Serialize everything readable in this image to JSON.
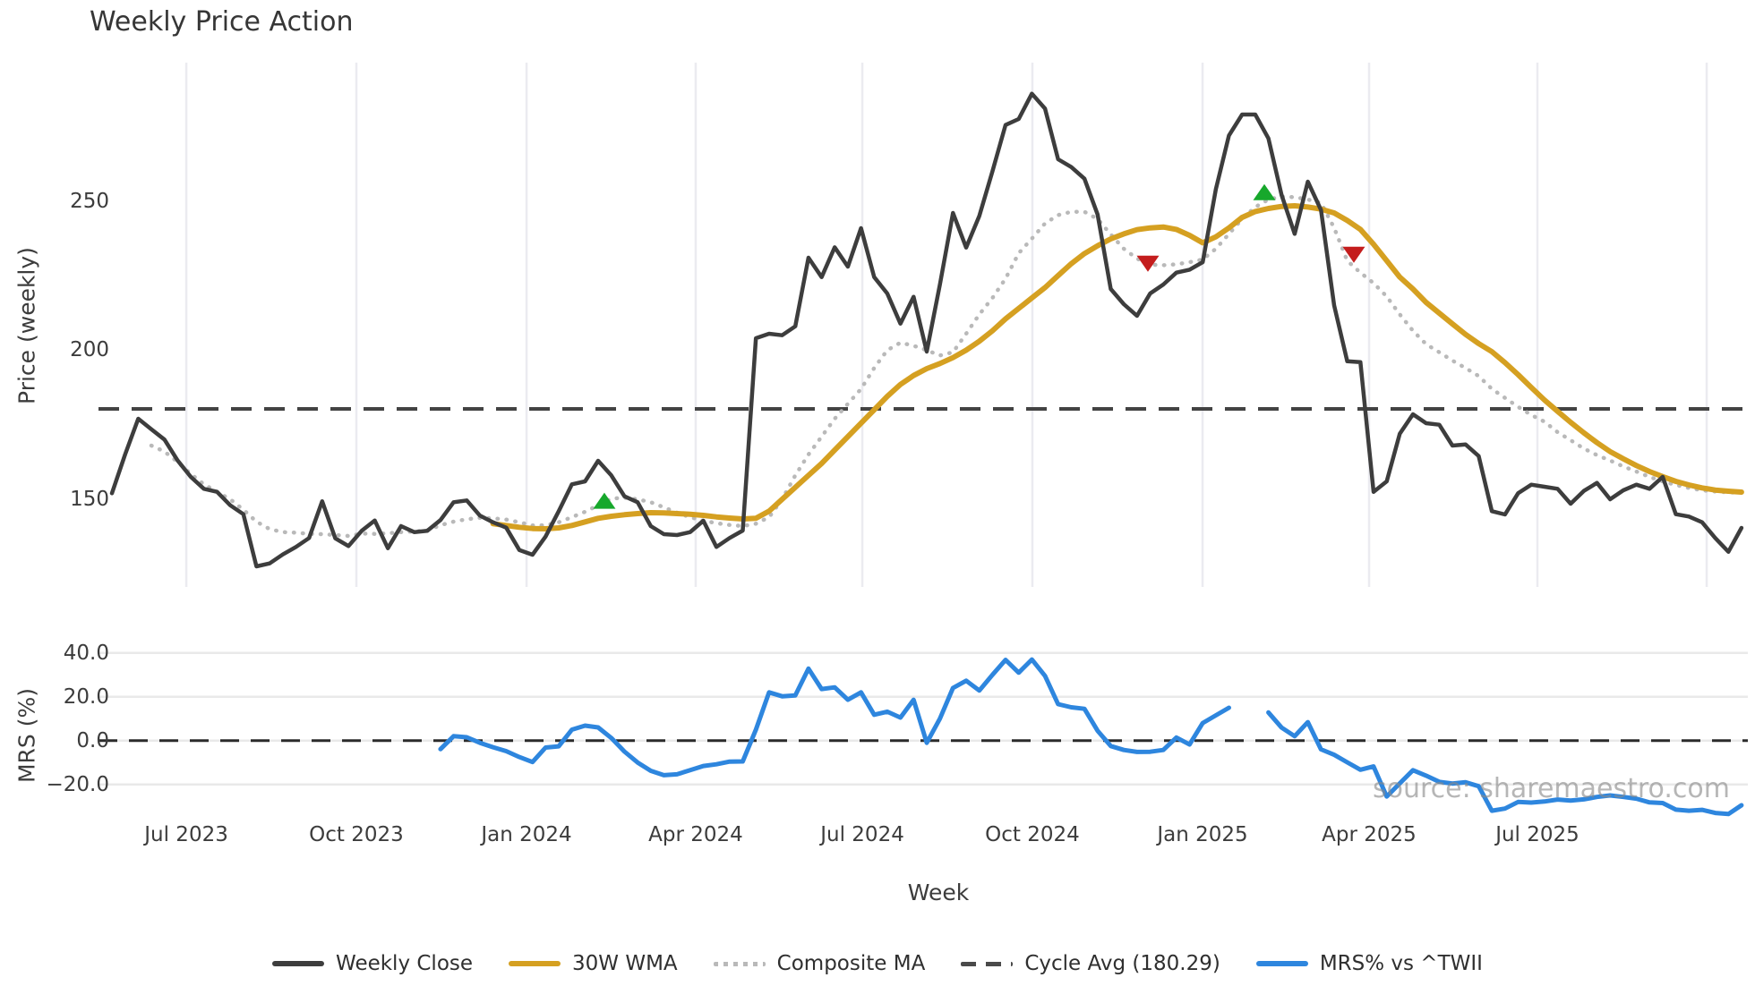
{
  "title": "Weekly Price Action",
  "watermark": "source: sharemaestro.com",
  "price_panel": {
    "ylabel": "Price (weekly)",
    "yticks": [
      {
        "label": "250",
        "value": 250
      },
      {
        "label": "200",
        "value": 200
      },
      {
        "label": "150",
        "value": 150
      }
    ],
    "ylim": [
      120,
      296.5
    ],
    "cycle_avg_value": 180.29
  },
  "mrs_panel": {
    "ylabel": "MRS (%)",
    "yticks": [
      {
        "label": "40.0",
        "value": 40
      },
      {
        "label": "20.0",
        "value": 20
      },
      {
        "label": "0.0",
        "value": 0
      },
      {
        "label": "−20.0",
        "value": -20
      }
    ],
    "ylim": [
      -38,
      44
    ],
    "zero_line": 0
  },
  "x_axis": {
    "label": "Week",
    "ticks": [
      {
        "label": "Jul 2023",
        "week": 5.66
      },
      {
        "label": "Oct 2023",
        "week": 18.6
      },
      {
        "label": "Jan 2024",
        "week": 31.55
      },
      {
        "label": "Apr 2024",
        "week": 44.42
      },
      {
        "label": "Jul 2024",
        "week": 57.1
      },
      {
        "label": "Oct 2024",
        "week": 70.04
      },
      {
        "label": "Jan 2025",
        "week": 82.99
      },
      {
        "label": "Apr 2025",
        "week": 95.66
      },
      {
        "label": "Jul 2025",
        "week": 108.47
      }
    ],
    "extra_gridline_weeks": [
      121.35
    ]
  },
  "legend": [
    {
      "label": "Weekly Close",
      "style": "solid",
      "color": "#3d3d3d"
    },
    {
      "label": "30W WMA",
      "style": "solid",
      "color": "#d5a021"
    },
    {
      "label": "Composite MA",
      "style": "dotted",
      "color": "#b9b9b9"
    },
    {
      "label": "Cycle Avg (180.29)",
      "style": "dashed",
      "color": "#4a4a4a"
    },
    {
      "label": "MRS% vs ^TWII",
      "style": "solid",
      "color": "#2e86de"
    }
  ],
  "colors": {
    "weekly_close": "#3d3d3d",
    "wma": "#d5a021",
    "composite": "#b9b9b9",
    "cycle_avg": "#434343",
    "mrs": "#2e86de",
    "buy_marker": "#17a82c",
    "sell_marker": "#c41d1d",
    "gridline": "#ebebf0",
    "mrs_gridline": "#e9e9e9"
  },
  "chart_data": {
    "type": "line",
    "title": "Weekly Price Action",
    "xlabel": "Week",
    "ylabel_top": "Price (weekly)",
    "ylabel_bottom": "MRS (%)",
    "x_start_date": "2023-05-29",
    "x_frequency": "weekly",
    "n_points": 125,
    "grid": "vertical-months-top-panel, horizontal-ticks-bottom-panel",
    "legend_position": "bottom-center",
    "cycle_avg": 180.29,
    "series": [
      {
        "name": "Weekly Close",
        "panel": "price",
        "values": [
          152,
          165,
          177,
          173.5,
          170,
          163,
          157.5,
          153.5,
          152.5,
          148,
          145,
          127.5,
          128.5,
          131.5,
          134,
          137,
          149.3,
          136.9,
          134.3,
          139.4,
          142.9,
          133.6,
          141,
          139,
          139.4,
          143,
          149,
          149.6,
          144.5,
          142.3,
          140.5,
          133,
          131.4,
          137.5,
          146,
          155,
          156,
          162.9,
          158,
          151,
          149,
          141,
          138.3,
          138,
          139,
          142.8,
          134,
          137,
          139.5,
          204,
          205.5,
          205,
          208,
          231,
          224.5,
          234.5,
          228,
          240.9,
          224.5,
          219,
          208.9,
          217.9,
          199.5,
          222,
          246,
          234.4,
          245,
          260,
          275.5,
          277.5,
          286,
          281,
          264,
          261.4,
          257.5,
          245.5,
          220.5,
          215.4,
          211.5,
          219,
          222,
          226,
          227,
          229.5,
          254,
          272,
          279,
          279,
          271,
          252,
          239,
          256.5,
          247,
          215,
          196.3,
          196,
          152.5,
          156,
          172,
          178.5,
          175.5,
          175,
          168,
          168.4,
          164.5,
          146,
          144.9,
          152,
          154.9,
          154.2,
          153.5,
          148.5,
          152.8,
          155.5,
          150,
          153,
          154.9,
          153.5,
          157.5,
          145,
          144.2,
          142.3,
          137,
          132.4,
          140.4
        ]
      },
      {
        "name": "30W WMA",
        "panel": "price",
        "values": [
          null,
          null,
          null,
          null,
          null,
          null,
          null,
          null,
          null,
          null,
          null,
          null,
          null,
          null,
          null,
          null,
          null,
          null,
          null,
          null,
          null,
          null,
          null,
          null,
          null,
          null,
          null,
          null,
          null,
          141.8,
          141.2,
          140.6,
          140.2,
          140.1,
          140.4,
          141.2,
          142.4,
          143.6,
          144.3,
          144.8,
          145.2,
          145.5,
          145.4,
          145.2,
          145,
          144.6,
          144.1,
          143.7,
          143.4,
          143.6,
          146,
          150,
          154,
          158,
          162,
          166.5,
          171,
          175.5,
          180,
          184.5,
          188.5,
          191.5,
          193.8,
          195.5,
          197.5,
          200,
          203,
          206.5,
          210.5,
          214,
          217.5,
          221,
          225,
          229,
          232.4,
          235,
          237.3,
          239,
          240.4,
          241,
          241.3,
          240.5,
          238.5,
          236,
          238,
          241,
          244.5,
          246.5,
          247.5,
          248.2,
          248.4,
          248,
          247.3,
          246,
          243.5,
          240.5,
          235.5,
          230,
          224.5,
          220.5,
          216,
          212.4,
          208.8,
          205.3,
          202.2,
          199.5,
          195.8,
          191.8,
          187.5,
          183.3,
          179.5,
          175.8,
          172.3,
          169,
          166,
          163.6,
          161.3,
          159.3,
          157.6,
          156,
          154.8,
          153.8,
          153.1,
          152.7,
          152.4
        ]
      },
      {
        "name": "Composite MA",
        "panel": "price",
        "values": [
          null,
          null,
          null,
          168,
          166,
          162.5,
          158.5,
          155,
          152.5,
          150,
          146.5,
          142.5,
          140,
          139,
          138.8,
          138.4,
          138.3,
          138,
          137.7,
          138.5,
          138.4,
          138.6,
          139,
          139.2,
          139.6,
          141.3,
          142.5,
          143.3,
          143.8,
          143.6,
          143.2,
          142.3,
          141.2,
          141.3,
          142.3,
          144,
          145.8,
          148,
          150.2,
          150.5,
          150,
          149,
          147.3,
          145.5,
          144,
          142.8,
          142,
          141.4,
          141,
          141.8,
          144,
          150,
          158,
          165,
          171,
          177,
          182,
          187,
          194,
          200,
          202.5,
          201.5,
          200,
          198.2,
          199.3,
          205.5,
          212,
          217.5,
          224,
          232.5,
          237.4,
          242.5,
          245.3,
          246.4,
          246.4,
          244,
          238.8,
          234,
          230.7,
          228.7,
          228.5,
          228.8,
          229.5,
          230.4,
          234,
          239,
          244,
          248,
          250.5,
          251.5,
          251.3,
          250.5,
          249.4,
          241,
          230,
          226,
          222.5,
          218,
          212,
          206.5,
          202,
          199.3,
          196.5,
          194,
          191.3,
          187,
          184,
          181,
          178.3,
          176,
          172.5,
          169.8,
          167,
          164.8,
          163,
          161,
          159.3,
          157.5,
          156,
          154.8,
          153.8,
          153,
          152.6,
          152.3,
          152.2
        ]
      },
      {
        "name": "MRS% vs ^TWII",
        "panel": "mrs",
        "values": [
          null,
          null,
          null,
          null,
          null,
          null,
          null,
          null,
          null,
          null,
          null,
          null,
          null,
          null,
          null,
          null,
          null,
          null,
          null,
          null,
          null,
          null,
          null,
          null,
          null,
          -3.9,
          2,
          1.5,
          -1,
          -3,
          -4.8,
          -7.5,
          -9.8,
          -3.2,
          -2.6,
          5,
          6.8,
          6,
          1.2,
          -5,
          -10,
          -13.8,
          -15.8,
          -15.4,
          -13.5,
          -11.6,
          -10.8,
          -9.6,
          -9.5,
          5,
          22,
          20.2,
          20.6,
          32.8,
          23.5,
          24.3,
          18.6,
          22,
          11.8,
          13.2,
          10.5,
          18.6,
          -1,
          10,
          24,
          27.3,
          22.8,
          30,
          36.8,
          31,
          37,
          29.5,
          16.6,
          15.2,
          14.5,
          4.5,
          -2.5,
          -4.3,
          -5.2,
          -5.1,
          -4.3,
          1.4,
          -1.8,
          8,
          11.5,
          15,
          null,
          null,
          12.8,
          5.9,
          2,
          8.4,
          -4,
          -6.5,
          -9.9,
          -13.3,
          -11.8,
          -25.5,
          -19.5,
          -13.5,
          -16,
          -18.8,
          -19.6,
          -19,
          -20.8,
          -32,
          -31,
          -28,
          -28.3,
          -27.8,
          -26.9,
          -27.4,
          -26.8,
          -25.7,
          -25,
          -25.7,
          -26.5,
          -28.2,
          -28.5,
          -31.5,
          -32,
          -31.6,
          -33,
          -33.5,
          -29.5
        ]
      }
    ],
    "signals": [
      {
        "week": 37.47,
        "price": 149.5,
        "type": "buy"
      },
      {
        "week": 78.83,
        "price": 229,
        "type": "sell"
      },
      {
        "week": 87.69,
        "price": 253,
        "type": "buy"
      },
      {
        "week": 94.5,
        "price": 232,
        "type": "sell"
      }
    ]
  }
}
